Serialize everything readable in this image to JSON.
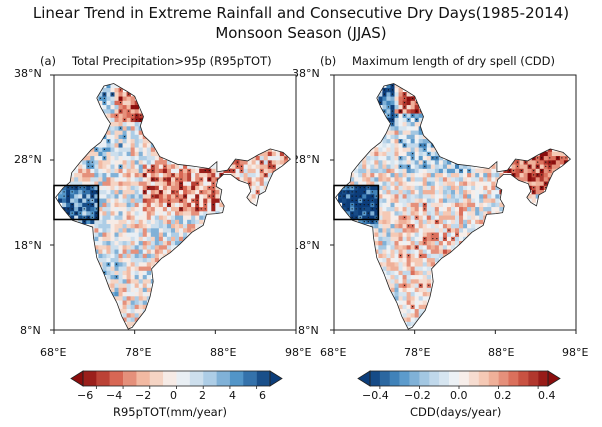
{
  "figure": {
    "title_line1": "Linear Trend in Extreme Rainfall and Consecutive Dry Days(1985-2014)",
    "title_line2": "Monsoon Season (JJAS)"
  },
  "panels": [
    {
      "id": "a",
      "label": "(a)",
      "title": "Total Precipitation>95p (R95pTOT)",
      "cmap": "red_blue",
      "colorbar": {
        "label": "R95pTOT(mm/year)",
        "range": [
          -7,
          7
        ],
        "ticks": [
          "−6",
          "−4",
          "−2",
          "0",
          "2",
          "4",
          "6"
        ],
        "tick_values": [
          -6,
          -4,
          -2,
          0,
          2,
          4,
          6
        ],
        "levels": 14
      }
    },
    {
      "id": "b",
      "label": "(b)",
      "title": "Maximum length of dry spell (CDD)",
      "cmap": "blue_red",
      "colorbar": {
        "label": "CDD(days/year)",
        "range": [
          -0.45,
          0.45
        ],
        "ticks": [
          "−0.4",
          "−0.2",
          "0.0",
          "0.2",
          "0.4"
        ],
        "tick_values": [
          -0.4,
          -0.2,
          0.0,
          0.2,
          0.4
        ],
        "levels": 18
      }
    }
  ],
  "axes": {
    "lon_range": [
      68,
      98
    ],
    "lat_range": [
      8,
      38
    ],
    "x_ticks": [
      "68°E",
      "78°E",
      "88°E",
      "98°E"
    ],
    "y_ticks": [
      "38°N",
      "28°N",
      "18°N",
      "8°N"
    ]
  },
  "highlight_box": {
    "lon": [
      68,
      73.5
    ],
    "lat": [
      21,
      25
    ]
  },
  "colors": {
    "dark_red": "#8b0d0d",
    "red": "#d6604d",
    "light_red": "#f4c0a8",
    "white": "#f7f7f7",
    "light_blue": "#b5d2e8",
    "blue": "#4a90c6",
    "dark_blue": "#0c3d7a"
  }
}
